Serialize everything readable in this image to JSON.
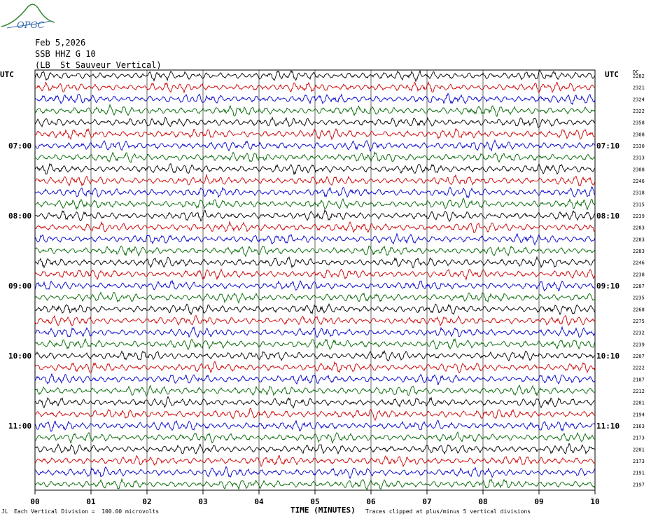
{
  "logo": {
    "text": "OPGC"
  },
  "header": {
    "date": "Feb 5,2026",
    "station": "SSB HHZ G 10",
    "location": "(LB  St Sauveur Vertical)"
  },
  "left_axis_label": "UTC",
  "right_axis_label": "UTC",
  "dc_label": "DC",
  "footer": {
    "corner": "JL",
    "scale_note": "Each Vertical Division =  100.00 microvolts",
    "clip_note": "Traces clipped at plus/minus 5 vertical divisions"
  },
  "chart_data": {
    "type": "line",
    "xlabel": "TIME (MINUTES)",
    "x_ticks": [
      "00",
      "01",
      "02",
      "03",
      "04",
      "05",
      "06",
      "07",
      "08",
      "09",
      "10"
    ],
    "xlim": [
      0,
      10
    ],
    "left_time_labels": [
      {
        "row": 6,
        "label": "07:00"
      },
      {
        "row": 12,
        "label": "08:00"
      },
      {
        "row": 18,
        "label": "09:00"
      },
      {
        "row": 24,
        "label": "10:00"
      },
      {
        "row": 30,
        "label": "11:00"
      }
    ],
    "right_time_labels": [
      {
        "row": 6,
        "label": "07:10"
      },
      {
        "row": 12,
        "label": "08:10"
      },
      {
        "row": 18,
        "label": "09:10"
      },
      {
        "row": 24,
        "label": "10:10"
      },
      {
        "row": 30,
        "label": "11:10"
      }
    ],
    "trace_colors": [
      "#000000",
      "#cc0000",
      "#0000cc",
      "#006600"
    ],
    "dc_offsets": [
      2282,
      2321,
      2324,
      2322,
      2358,
      2308,
      2330,
      2313,
      2308,
      2246,
      2318,
      2315,
      2239,
      2283,
      2283,
      2283,
      2246,
      2238,
      2287,
      2235,
      2268,
      2275,
      2232,
      2239,
      2207,
      2222,
      2187,
      2212,
      2201,
      2194,
      2163,
      2173,
      2201,
      2173,
      2191,
      2197
    ]
  }
}
